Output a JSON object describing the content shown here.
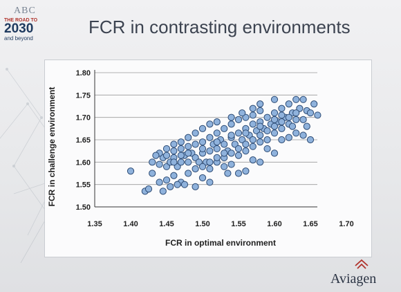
{
  "header": {
    "title": "FCR in contrasting environments"
  },
  "logo": {
    "abc": "ABC",
    "road": "THE ROAD TO",
    "year": "2030",
    "beyond": "and beyond"
  },
  "brand": {
    "name": "Aviagen"
  },
  "colors": {
    "point_fill": "#8fb2dc",
    "point_stroke": "#2c4a73",
    "grid": "#9a9a9a",
    "title": "#3c4350"
  },
  "chart_data": {
    "type": "scatter",
    "title": "",
    "xlabel": "FCR in optimal environment",
    "ylabel": "FCR in challenge environment",
    "xlim": [
      1.35,
      1.7
    ],
    "ylim": [
      1.5,
      1.8
    ],
    "x_ticks": [
      "1.35",
      "1.40",
      "1.45",
      "1.50",
      "1.55",
      "1.60",
      "1.65",
      "1.70"
    ],
    "y_ticks": [
      "1.50",
      "1.55",
      "1.60",
      "1.65",
      "1.70",
      "1.75",
      "1.80"
    ],
    "grid": "horizontal",
    "legend": "none",
    "series": [
      {
        "points": [
          [
            1.4,
            1.58
          ],
          [
            1.42,
            1.535
          ],
          [
            1.425,
            1.54
          ],
          [
            1.43,
            1.575
          ],
          [
            1.43,
            1.6
          ],
          [
            1.44,
            1.555
          ],
          [
            1.44,
            1.595
          ],
          [
            1.445,
            1.61
          ],
          [
            1.445,
            1.535
          ],
          [
            1.45,
            1.56
          ],
          [
            1.45,
            1.59
          ],
          [
            1.45,
            1.615
          ],
          [
            1.455,
            1.545
          ],
          [
            1.455,
            1.6
          ],
          [
            1.46,
            1.57
          ],
          [
            1.46,
            1.61
          ],
          [
            1.46,
            1.625
          ],
          [
            1.465,
            1.59
          ],
          [
            1.47,
            1.555
          ],
          [
            1.47,
            1.6
          ],
          [
            1.47,
            1.63
          ],
          [
            1.475,
            1.615
          ],
          [
            1.48,
            1.575
          ],
          [
            1.48,
            1.6
          ],
          [
            1.48,
            1.635
          ],
          [
            1.485,
            1.62
          ],
          [
            1.49,
            1.585
          ],
          [
            1.49,
            1.61
          ],
          [
            1.49,
            1.64
          ],
          [
            1.495,
            1.6
          ],
          [
            1.5,
            1.565
          ],
          [
            1.5,
            1.62
          ],
          [
            1.5,
            1.645
          ],
          [
            1.505,
            1.6
          ],
          [
            1.51,
            1.585
          ],
          [
            1.51,
            1.625
          ],
          [
            1.51,
            1.655
          ],
          [
            1.515,
            1.64
          ],
          [
            1.52,
            1.6
          ],
          [
            1.52,
            1.63
          ],
          [
            1.52,
            1.665
          ],
          [
            1.525,
            1.65
          ],
          [
            1.53,
            1.61
          ],
          [
            1.53,
            1.64
          ],
          [
            1.53,
            1.675
          ],
          [
            1.535,
            1.625
          ],
          [
            1.54,
            1.595
          ],
          [
            1.54,
            1.655
          ],
          [
            1.54,
            1.685
          ],
          [
            1.545,
            1.64
          ],
          [
            1.55,
            1.615
          ],
          [
            1.55,
            1.665
          ],
          [
            1.55,
            1.695
          ],
          [
            1.555,
            1.65
          ],
          [
            1.56,
            1.625
          ],
          [
            1.56,
            1.675
          ],
          [
            1.56,
            1.7
          ],
          [
            1.565,
            1.66
          ],
          [
            1.57,
            1.635
          ],
          [
            1.57,
            1.685
          ],
          [
            1.57,
            1.705
          ],
          [
            1.575,
            1.67
          ],
          [
            1.58,
            1.645
          ],
          [
            1.58,
            1.69
          ],
          [
            1.58,
            1.715
          ],
          [
            1.585,
            1.675
          ],
          [
            1.59,
            1.65
          ],
          [
            1.59,
            1.7
          ],
          [
            1.595,
            1.685
          ],
          [
            1.6,
            1.665
          ],
          [
            1.6,
            1.71
          ],
          [
            1.605,
            1.69
          ],
          [
            1.61,
            1.675
          ],
          [
            1.61,
            1.72
          ],
          [
            1.615,
            1.7
          ],
          [
            1.62,
            1.685
          ],
          [
            1.62,
            1.73
          ],
          [
            1.625,
            1.71
          ],
          [
            1.63,
            1.695
          ],
          [
            1.63,
            1.74
          ],
          [
            1.635,
            1.72
          ],
          [
            1.64,
            1.74
          ],
          [
            1.645,
            1.715
          ],
          [
            1.65,
            1.71
          ],
          [
            1.66,
            1.705
          ],
          [
            1.63,
            1.665
          ],
          [
            1.64,
            1.66
          ],
          [
            1.65,
            1.65
          ],
          [
            1.645,
            1.68
          ],
          [
            1.62,
            1.655
          ],
          [
            1.6,
            1.62
          ],
          [
            1.58,
            1.6
          ],
          [
            1.56,
            1.58
          ],
          [
            1.535,
            1.575
          ],
          [
            1.51,
            1.555
          ],
          [
            1.49,
            1.545
          ],
          [
            1.475,
            1.55
          ],
          [
            1.465,
            1.55
          ],
          [
            1.55,
            1.575
          ],
          [
            1.57,
            1.605
          ],
          [
            1.59,
            1.63
          ],
          [
            1.61,
            1.65
          ],
          [
            1.625,
            1.68
          ],
          [
            1.64,
            1.695
          ],
          [
            1.655,
            1.73
          ],
          [
            1.6,
            1.74
          ],
          [
            1.58,
            1.73
          ],
          [
            1.57,
            1.72
          ],
          [
            1.555,
            1.71
          ],
          [
            1.54,
            1.7
          ],
          [
            1.52,
            1.69
          ],
          [
            1.51,
            1.685
          ],
          [
            1.5,
            1.675
          ],
          [
            1.49,
            1.665
          ],
          [
            1.48,
            1.655
          ],
          [
            1.47,
            1.645
          ],
          [
            1.46,
            1.64
          ],
          [
            1.45,
            1.63
          ],
          [
            1.44,
            1.62
          ],
          [
            1.435,
            1.615
          ],
          [
            1.52,
            1.61
          ],
          [
            1.54,
            1.62
          ],
          [
            1.53,
            1.59
          ],
          [
            1.56,
            1.64
          ],
          [
            1.58,
            1.66
          ],
          [
            1.59,
            1.67
          ],
          [
            1.61,
            1.69
          ],
          [
            1.62,
            1.7
          ],
          [
            1.63,
            1.71
          ],
          [
            1.6,
            1.68
          ],
          [
            1.57,
            1.65
          ],
          [
            1.55,
            1.63
          ],
          [
            1.53,
            1.62
          ],
          [
            1.51,
            1.6
          ],
          [
            1.5,
            1.59
          ],
          [
            1.48,
            1.62
          ],
          [
            1.47,
            1.615
          ],
          [
            1.46,
            1.6
          ],
          [
            1.5,
            1.63
          ],
          [
            1.52,
            1.645
          ],
          [
            1.54,
            1.66
          ],
          [
            1.56,
            1.665
          ],
          [
            1.58,
            1.68
          ],
          [
            1.6,
            1.695
          ],
          [
            1.61,
            1.705
          ]
        ]
      }
    ]
  }
}
